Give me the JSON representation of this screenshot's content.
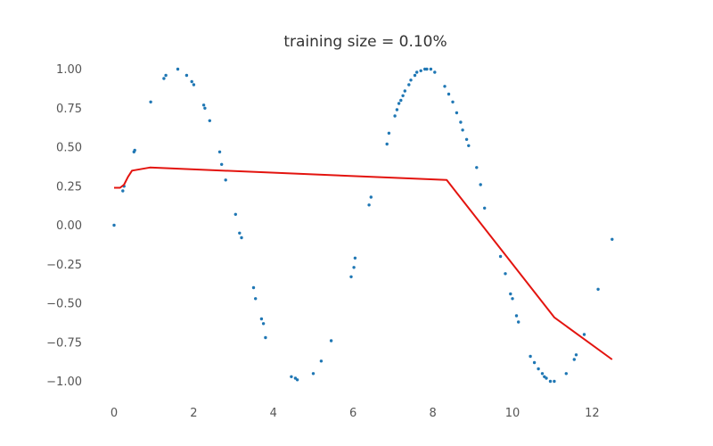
{
  "chart_data": {
    "type": "scatter",
    "title": "training size = 0.10%",
    "xlabel": "",
    "ylabel": "",
    "xlim": [
      -0.5,
      12.7
    ],
    "ylim": [
      -1.1,
      1.08
    ],
    "grid": false,
    "x_ticks": [
      0,
      2,
      4,
      6,
      8,
      10,
      12
    ],
    "x_tick_labels": [
      "0",
      "2",
      "4",
      "6",
      "8",
      "10",
      "12"
    ],
    "y_ticks": [
      1.0,
      0.75,
      0.5,
      0.25,
      0.0,
      -0.25,
      -0.5,
      -0.75,
      -1.0
    ],
    "y_tick_labels": [
      "1.00",
      "0.75",
      "0.50",
      "0.25",
      "0.00",
      "−0.25",
      "−0.50",
      "−0.75",
      "−1.00"
    ],
    "series": [
      {
        "kind": "scatter",
        "color": "#1f77b4",
        "x": [
          0.0,
          0.22,
          0.25,
          0.5,
          0.52,
          0.92,
          1.25,
          1.3,
          1.6,
          1.82,
          1.95,
          2.0,
          2.25,
          2.28,
          2.4,
          2.65,
          2.7,
          2.8,
          3.05,
          3.15,
          3.2,
          3.5,
          3.55,
          3.7,
          3.75,
          3.8,
          4.45,
          4.55,
          4.6,
          5.0,
          5.2,
          5.45,
          5.95,
          6.02,
          6.05,
          6.4,
          6.45,
          6.85,
          6.9,
          7.05,
          7.1,
          7.15,
          7.2,
          7.25,
          7.3,
          7.4,
          7.45,
          7.55,
          7.6,
          7.7,
          7.8,
          7.85,
          7.95,
          8.05,
          8.3,
          8.4,
          8.5,
          8.6,
          8.7,
          8.75,
          8.85,
          8.9,
          9.1,
          9.2,
          9.3,
          9.7,
          9.82,
          9.95,
          10.0,
          10.1,
          10.15,
          10.45,
          10.55,
          10.65,
          10.75,
          10.8,
          10.85,
          10.95,
          11.05,
          11.35,
          11.55,
          11.6,
          11.8,
          12.15,
          12.5
        ],
        "y": [
          0.0,
          0.22,
          0.25,
          0.47,
          0.48,
          0.79,
          0.94,
          0.96,
          1.0,
          0.96,
          0.92,
          0.9,
          0.77,
          0.75,
          0.67,
          0.47,
          0.39,
          0.29,
          0.07,
          -0.05,
          -0.08,
          -0.4,
          -0.47,
          -0.6,
          -0.63,
          -0.72,
          -0.97,
          -0.98,
          -0.99,
          -0.95,
          -0.87,
          -0.74,
          -0.33,
          -0.27,
          -0.21,
          0.13,
          0.18,
          0.52,
          0.59,
          0.7,
          0.74,
          0.78,
          0.8,
          0.83,
          0.86,
          0.9,
          0.93,
          0.96,
          0.98,
          0.99,
          1.0,
          1.0,
          1.0,
          0.98,
          0.89,
          0.84,
          0.79,
          0.72,
          0.66,
          0.61,
          0.55,
          0.51,
          0.37,
          0.26,
          0.11,
          -0.2,
          -0.31,
          -0.44,
          -0.47,
          -0.58,
          -0.62,
          -0.84,
          -0.88,
          -0.92,
          -0.95,
          -0.97,
          -0.98,
          -1.0,
          -1.0,
          -0.95,
          -0.86,
          -0.83,
          -0.7,
          -0.41,
          -0.09
        ]
      },
      {
        "kind": "line",
        "color": "#e3140f",
        "x": [
          0.0,
          0.15,
          0.25,
          0.35,
          0.45,
          0.9,
          8.35,
          11.05,
          12.5
        ],
        "y": [
          0.24,
          0.24,
          0.26,
          0.31,
          0.35,
          0.37,
          0.29,
          -0.59,
          -0.86
        ]
      }
    ]
  }
}
